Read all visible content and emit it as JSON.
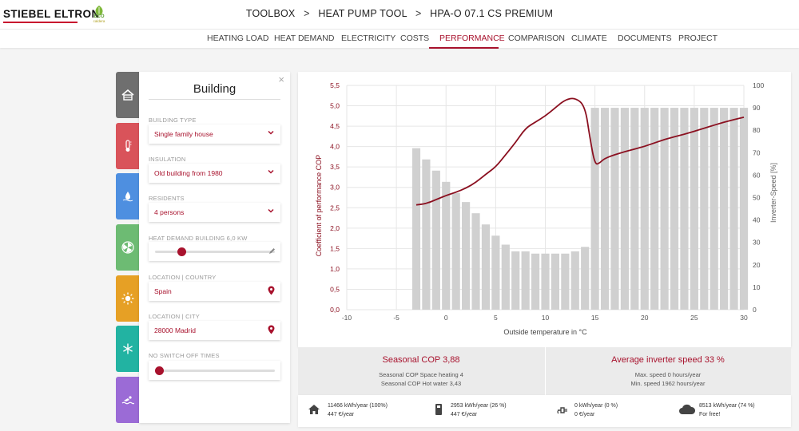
{
  "brand": {
    "name": "STIEBEL ELTRON",
    "eco": "ECO",
    "eco_sub": "caldera"
  },
  "breadcrumb": [
    "TOOLBOX",
    "HEAT PUMP TOOL",
    "HPA-O 07.1 CS PREMIUM"
  ],
  "breadcrumb_sep": ">",
  "nav": {
    "items": [
      {
        "label": "HEATING LOAD",
        "active": false
      },
      {
        "label": "HEAT DEMAND",
        "active": false
      },
      {
        "label": "ELECTRICITY",
        "active": false
      },
      {
        "label": "COSTS",
        "active": false
      },
      {
        "label": "PERFORMANCE",
        "active": true
      },
      {
        "label": "COMPARISON",
        "active": false
      },
      {
        "label": "CLIMATE",
        "active": false
      },
      {
        "label": "DOCUMENTS",
        "active": false
      },
      {
        "label": "PROJECT",
        "active": false
      }
    ]
  },
  "side_tabs": [
    {
      "name": "building",
      "icon": "house-icon",
      "color": "#6f6f6f"
    },
    {
      "name": "heating",
      "icon": "thermometer-icon",
      "color": "#d9535a"
    },
    {
      "name": "hot-water",
      "icon": "water-icon",
      "color": "#4e8fe0"
    },
    {
      "name": "ventilation",
      "icon": "fan-icon",
      "color": "#6dbb73"
    },
    {
      "name": "solar",
      "icon": "sun-icon",
      "color": "#e6a025"
    },
    {
      "name": "cooling",
      "icon": "snowflake-icon",
      "color": "#22b3a2"
    },
    {
      "name": "pool",
      "icon": "swimmer-icon",
      "color": "#9b6bd6"
    }
  ],
  "panel": {
    "title": "Building",
    "close": "×",
    "building_type": {
      "label": "BUILDING TYPE",
      "value": "Single family house"
    },
    "insulation": {
      "label": "INSULATION",
      "value": "Old building from 1980"
    },
    "residents": {
      "label": "RESIDENTS",
      "value": "4 persons"
    },
    "heat_demand": {
      "label": "HEAT DEMAND BUILDING 6,0 KW",
      "level": 0.2
    },
    "country": {
      "label": "LOCATION | COUNTRY",
      "value": "Spain"
    },
    "city": {
      "label": "LOCATION | CITY",
      "value": "28000 Madrid"
    },
    "switch_off": {
      "label": "NO SWITCH OFF TIMES",
      "level": 0.0
    }
  },
  "chart_data": {
    "type": "bar+line",
    "xlabel": "Outside temperature in °C",
    "ylabel_left": "Coefficient of performance COP",
    "ylabel_right": "Inverter-Speed [%]",
    "xlim": [
      -10,
      30
    ],
    "ylim_left": [
      0,
      5.5
    ],
    "ylim_right": [
      0,
      100
    ],
    "x_ticks": [
      "-10",
      "-5",
      "0",
      "5",
      "10",
      "15",
      "20",
      "25",
      "30"
    ],
    "y_left_ticks": [
      "0,0",
      "0,5",
      "1,0",
      "1,5",
      "2,0",
      "2,5",
      "3,0",
      "3,5",
      "4,0",
      "4,5",
      "5,0",
      "5,5"
    ],
    "y_right_ticks": [
      "0",
      "10",
      "20",
      "30",
      "40",
      "50",
      "60",
      "70",
      "80",
      "90",
      "100"
    ],
    "bars": {
      "name": "Inverter-Speed",
      "x": [
        -3,
        -2,
        -1,
        0,
        1,
        2,
        3,
        4,
        5,
        6,
        7,
        8,
        9,
        10,
        11,
        12,
        13,
        14,
        15,
        16,
        17,
        18,
        19,
        20,
        21,
        22,
        23,
        24,
        25,
        26,
        27,
        28,
        29,
        30
      ],
      "values": [
        72,
        67,
        62,
        57,
        52,
        48,
        43,
        38,
        33,
        29,
        26,
        26,
        25,
        25,
        25,
        25,
        26,
        28,
        90,
        90,
        90,
        90,
        90,
        90,
        90,
        90,
        90,
        90,
        90,
        90,
        90,
        90,
        90,
        90
      ]
    },
    "line": {
      "name": "COP",
      "x": [
        -3,
        -2,
        -1,
        0,
        1,
        2,
        3,
        4,
        5,
        6,
        7,
        8,
        9,
        10,
        11,
        12,
        13,
        14,
        14.5,
        15,
        15.5,
        16,
        18,
        20,
        22,
        24,
        26,
        28,
        30
      ],
      "values": [
        2.57,
        2.6,
        2.7,
        2.8,
        2.88,
        2.98,
        3.12,
        3.32,
        3.5,
        3.8,
        4.1,
        4.45,
        4.6,
        4.75,
        4.95,
        5.15,
        5.2,
        5.0,
        4.2,
        3.55,
        3.6,
        3.72,
        3.88,
        4.0,
        4.18,
        4.3,
        4.45,
        4.6,
        4.72
      ]
    },
    "bar_color": "#d0d0d0",
    "line_color": "#8b1020"
  },
  "stats": {
    "left": {
      "title": "Seasonal COP 3,88",
      "line1": "Seasonal COP Space heating 4",
      "line2": "Seasonal COP Hot water 3,43"
    },
    "right": {
      "title": "Average inverter speed 33 %",
      "line1": "Max. speed 0 hours/year",
      "line2": "Min. speed 1962 hours/year"
    }
  },
  "energy": [
    {
      "icon": "house-icon",
      "line1": "11466 kWh/year (100%)",
      "line2": "447 €/year"
    },
    {
      "icon": "heat-pump-icon",
      "line1": "2953 kWh/year (26 %)",
      "line2": "447 €/year"
    },
    {
      "icon": "plug-icon",
      "line1": "0 kWh/year (0 %)",
      "line2": "0 €/year"
    },
    {
      "icon": "cloud-icon",
      "line1": "8513 kWh/year (74 %)",
      "line2": "For free!"
    }
  ]
}
